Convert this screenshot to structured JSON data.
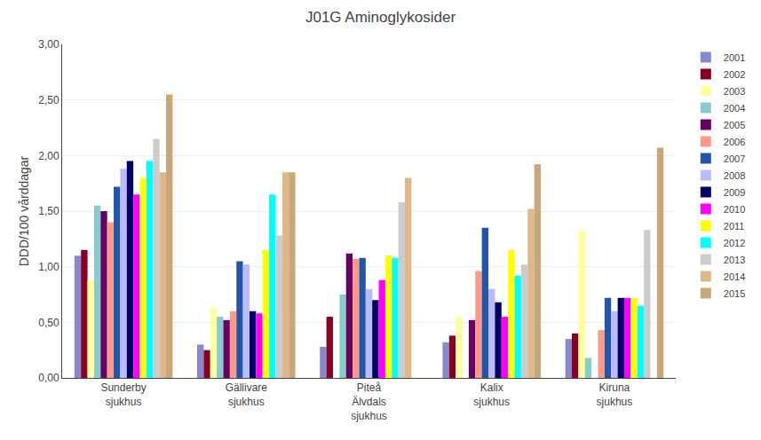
{
  "chart_data": {
    "type": "bar",
    "title": "J01G Aminoglykosider",
    "ylabel": "DDD/100 vårddagar",
    "categories": [
      "Sunderby\nsjukhus",
      "Gällivare\nsjukhus",
      "Piteå\nÄlvdals\nsjukhus",
      "Kalix\nsjukhus",
      "Kiruna\nsjukhus"
    ],
    "series": [
      {
        "name": "2001",
        "color": "#8888CC",
        "values": [
          1.1,
          0.3,
          0.28,
          0.32,
          0.35
        ]
      },
      {
        "name": "2002",
        "color": "#880022",
        "values": [
          1.15,
          0.25,
          0.55,
          0.38,
          0.4
        ]
      },
      {
        "name": "2003",
        "color": "#FFFFA0",
        "values": [
          0.88,
          0.63,
          0.0,
          0.55,
          1.33
        ]
      },
      {
        "name": "2004",
        "color": "#88CCCC",
        "values": [
          1.55,
          0.55,
          0.75,
          0.0,
          0.18
        ]
      },
      {
        "name": "2005",
        "color": "#660066",
        "values": [
          1.5,
          0.52,
          1.12,
          0.52,
          0.0
        ]
      },
      {
        "name": "2006",
        "color": "#FF9988",
        "values": [
          1.4,
          0.6,
          1.07,
          0.96,
          0.43
        ]
      },
      {
        "name": "2007",
        "color": "#2255AA",
        "values": [
          1.72,
          1.05,
          1.08,
          1.35,
          0.72
        ]
      },
      {
        "name": "2008",
        "color": "#BBBBFF",
        "values": [
          1.88,
          1.02,
          0.8,
          0.8,
          0.6
        ]
      },
      {
        "name": "2009",
        "color": "#000066",
        "values": [
          1.95,
          0.6,
          0.7,
          0.68,
          0.72
        ]
      },
      {
        "name": "2010",
        "color": "#FF00FF",
        "values": [
          1.65,
          0.58,
          0.88,
          0.55,
          0.72
        ]
      },
      {
        "name": "2011",
        "color": "#FFFF00",
        "values": [
          1.8,
          1.15,
          1.1,
          1.15,
          0.72
        ]
      },
      {
        "name": "2012",
        "color": "#00FFFF",
        "values": [
          1.95,
          1.65,
          1.08,
          0.92,
          0.65
        ]
      },
      {
        "name": "2013",
        "color": "#CCCCCC",
        "values": [
          2.15,
          1.28,
          1.58,
          1.02,
          1.33
        ]
      },
      {
        "name": "2014",
        "color": "#DEB887",
        "values": [
          1.85,
          1.85,
          1.8,
          1.52,
          0.0
        ]
      },
      {
        "name": "2015",
        "color": "#C8A878",
        "values": [
          2.55,
          1.85,
          0.0,
          1.92,
          2.07
        ]
      }
    ],
    "ylim": [
      0,
      3.0
    ],
    "yticks": [
      {
        "value": 0.0,
        "label": "0,00"
      },
      {
        "value": 0.5,
        "label": "0,50"
      },
      {
        "value": 1.0,
        "label": "1,00"
      },
      {
        "value": 1.5,
        "label": "1,50"
      },
      {
        "value": 2.0,
        "label": "2,00"
      },
      {
        "value": 2.5,
        "label": "2,50"
      },
      {
        "value": 3.0,
        "label": "3,00"
      }
    ],
    "grid": true,
    "legend": "upper right"
  }
}
